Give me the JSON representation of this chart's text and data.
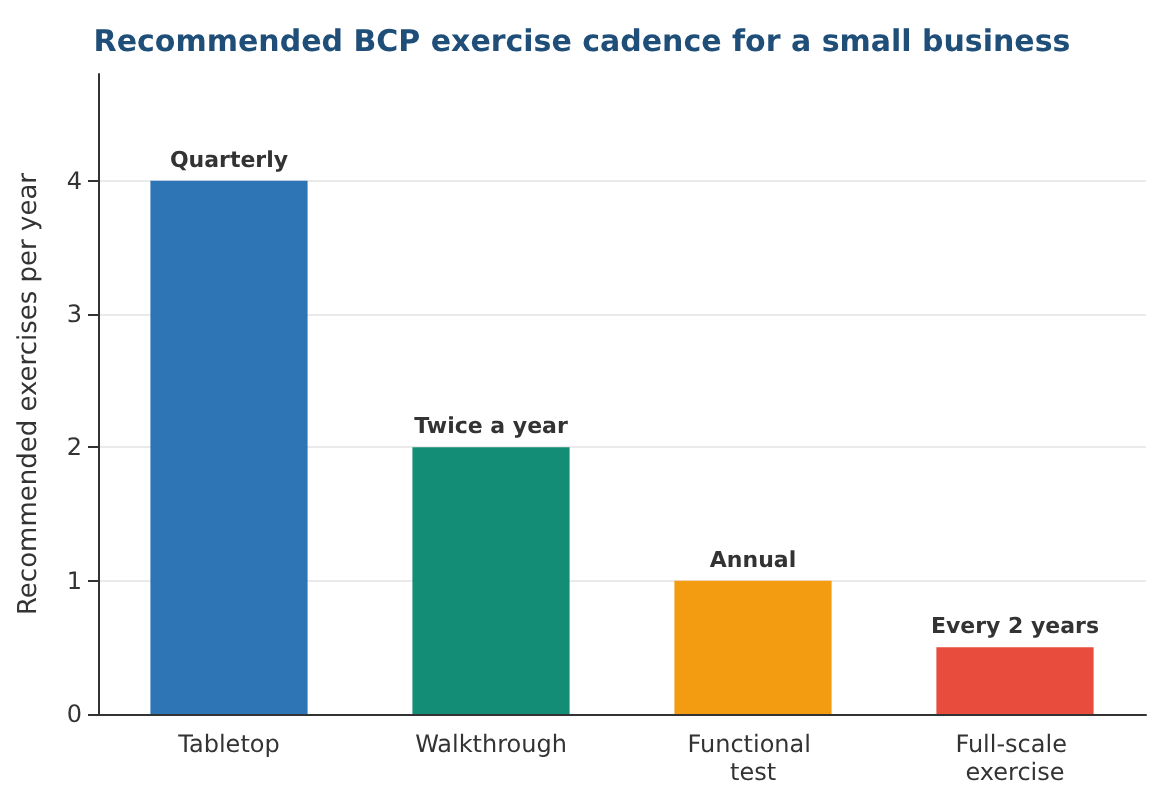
{
  "chart_data": {
    "type": "bar",
    "title": "Recommended BCP exercise cadence for a small business",
    "ylabel": "Recommended exercises per year",
    "categories": [
      "Tabletop",
      "Walkthrough",
      "Functional test",
      "Full-scale exercise"
    ],
    "values": [
      4,
      2,
      1,
      0.5
    ],
    "colors": [
      "#2e75b6",
      "#138d75",
      "#f39c12",
      "#e74c3c"
    ],
    "value_labels": [
      "Quarterly",
      "Twice a year",
      "Annual",
      "Every 2 years"
    ],
    "ylim": [
      0,
      4.8
    ],
    "yticks": [
      0,
      1,
      2,
      3,
      4
    ],
    "grid": "y"
  }
}
